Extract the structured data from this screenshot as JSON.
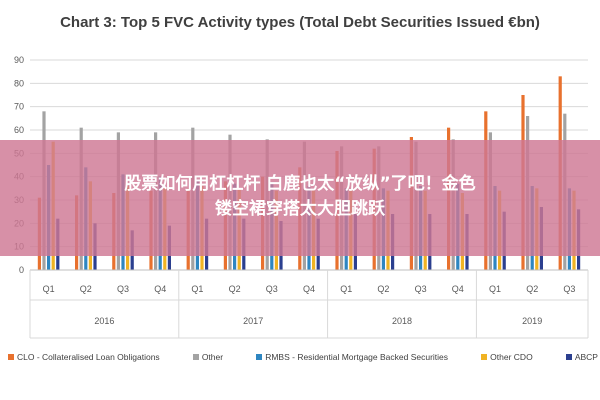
{
  "overlay": {
    "line1": "股票如何用杠杠杆 白鹿也太“放纵”了吧！金色",
    "line2": "镂空裙穿搭太大胆跳跃"
  },
  "colors": {
    "CLO": "#e8712e",
    "Other": "#a3a3a3",
    "RMBS": "#2e86c1",
    "OtherCDO": "#f0b323",
    "ABCP": "#2b3f8f",
    "overlay": "#ce7894"
  },
  "chart_data": {
    "type": "bar",
    "title": "Chart 3: Top 5 FVC Activity types (Total Debt Securities Issued €bn)",
    "xlabel": "",
    "ylabel": "",
    "ylim": [
      0,
      90
    ],
    "yticks": [
      0,
      10,
      20,
      30,
      40,
      50,
      60,
      70,
      80,
      90
    ],
    "grid": true,
    "legend_position": "bottom",
    "categories": [
      "Q1",
      "Q2",
      "Q3",
      "Q4",
      "Q1",
      "Q2",
      "Q3",
      "Q4",
      "Q1",
      "Q2",
      "Q3",
      "Q4",
      "Q1",
      "Q2",
      "Q3"
    ],
    "years": [
      {
        "label": "2016",
        "quarters": 4
      },
      {
        "label": "2017",
        "quarters": 4
      },
      {
        "label": "2018",
        "quarters": 4
      },
      {
        "label": "2019",
        "quarters": 3
      }
    ],
    "series": [
      {
        "name": "CLO - Collateralised Loan Obligations",
        "color_key": "CLO",
        "values": [
          31,
          32,
          33,
          34,
          35,
          38,
          40,
          44,
          51,
          52,
          57,
          61,
          68,
          75,
          83
        ]
      },
      {
        "name": "Other",
        "color_key": "Other",
        "values": [
          68,
          61,
          59,
          59,
          61,
          58,
          56,
          55,
          53,
          53,
          55,
          56,
          59,
          66,
          67
        ]
      },
      {
        "name": "RMBS - Residential Mortgage Backed Securities",
        "color_key": "RMBS",
        "values": [
          45,
          44,
          41,
          40,
          38,
          37,
          37,
          36,
          35,
          35,
          36,
          37,
          36,
          36,
          35
        ]
      },
      {
        "name": "Other CDO",
        "color_key": "OtherCDO",
        "values": [
          55,
          38,
          36,
          35,
          36,
          35,
          34,
          34,
          34,
          34,
          34,
          33,
          34,
          35,
          34
        ]
      },
      {
        "name": "ABCP",
        "color_key": "ABCP",
        "values": [
          22,
          20,
          17,
          19,
          22,
          22,
          21,
          22,
          24,
          24,
          24,
          24,
          25,
          27,
          26
        ]
      }
    ]
  }
}
